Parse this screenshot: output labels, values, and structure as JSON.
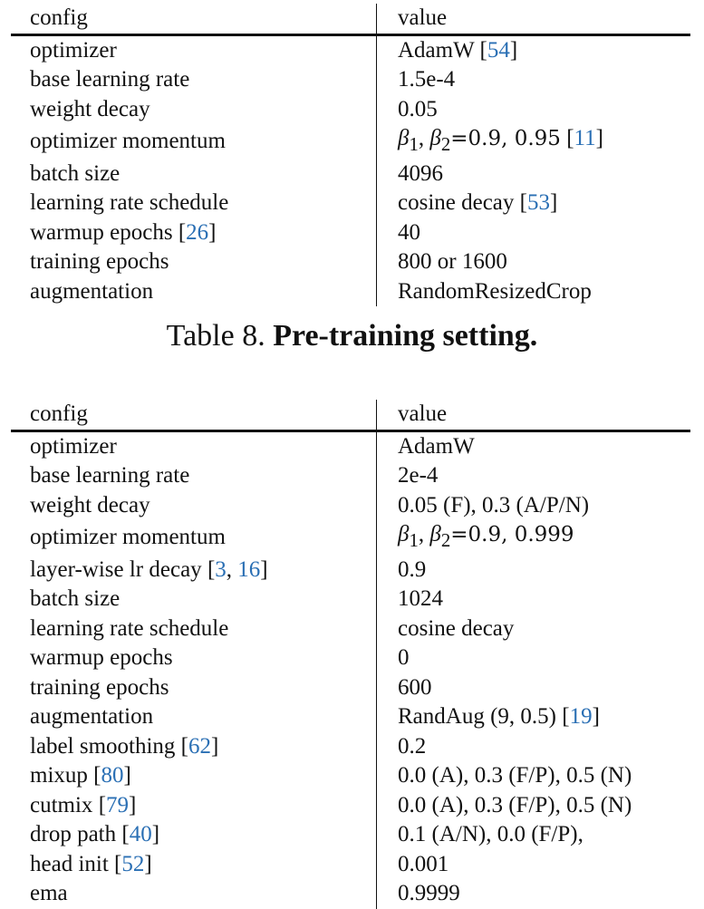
{
  "table8": {
    "header": {
      "config": "config",
      "value": "value"
    },
    "rows": [
      {
        "config": "optimizer",
        "value": "AdamW",
        "value_ref": "54"
      },
      {
        "config": "base learning rate",
        "value": "1.5e-4"
      },
      {
        "config": "weight decay",
        "value": "0.05"
      },
      {
        "config": "optimizer momentum",
        "beta1": "β",
        "beta1_sub": "1",
        "beta2": "β",
        "beta2_sub": "2",
        "beta_values": "=0.9, 0.95",
        "value_ref": "11"
      },
      {
        "config": "batch size",
        "value": "4096"
      },
      {
        "config": "learning rate schedule",
        "value": "cosine decay",
        "value_ref": "53"
      },
      {
        "config": "warmup epochs",
        "config_ref": "26",
        "value": "40"
      },
      {
        "config": "training epochs",
        "value": "800 or 1600"
      },
      {
        "config": "augmentation",
        "value": "RandomResizedCrop"
      }
    ],
    "caption": {
      "label": "Table 8.",
      "title": "Pre-training setting."
    }
  },
  "table9": {
    "header": {
      "config": "config",
      "value": "value"
    },
    "rows": [
      {
        "config": "optimizer",
        "value": "AdamW"
      },
      {
        "config": "base learning rate",
        "value": "2e-4"
      },
      {
        "config": "weight decay",
        "value": "0.05 (F), 0.3 (A/P/N)"
      },
      {
        "config": "optimizer momentum",
        "beta1": "β",
        "beta1_sub": "1",
        "beta2": "β",
        "beta2_sub": "2",
        "beta_values": "=0.9, 0.999"
      },
      {
        "config": "layer-wise lr decay",
        "config_ref_a": "3",
        "config_ref_b": "16",
        "value": "0.9"
      },
      {
        "config": "batch size",
        "value": "1024"
      },
      {
        "config": "learning rate schedule",
        "value": "cosine decay"
      },
      {
        "config": "warmup epochs",
        "value": "0"
      },
      {
        "config": "training epochs",
        "value": "600"
      },
      {
        "config": "augmentation",
        "value": "RandAug (9, 0.5)",
        "value_ref": "19"
      },
      {
        "config": "label smoothing",
        "config_ref": "62",
        "value": "0.2"
      },
      {
        "config": "mixup",
        "config_ref": "80",
        "value": "0.0 (A), 0.3 (F/P), 0.5 (N)"
      },
      {
        "config": "cutmix",
        "config_ref": "79",
        "value": "0.0 (A), 0.3 (F/P), 0.5 (N)"
      },
      {
        "config": "drop path",
        "config_ref": "40",
        "value": "0.1 (A/N), 0.0 (F/P),"
      },
      {
        "config": "head init",
        "config_ref": "52",
        "value": "0.001"
      },
      {
        "config": "ema",
        "value": "0.9999"
      }
    ]
  },
  "colors": {
    "text": "#111111",
    "reference_link": "#2a6fb4"
  }
}
